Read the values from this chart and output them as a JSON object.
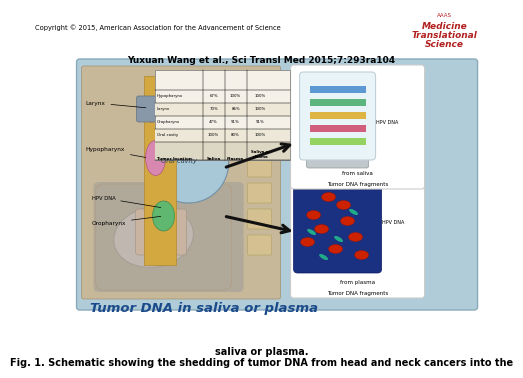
{
  "title_line1": "Fig. 1. Schematic showing the shedding of tumor DNA from head and neck cancers into the",
  "title_line2": "saliva or plasma.",
  "citation": "Yuxuan Wang et al., Sci Transl Med 2015;7:293ra104",
  "copyright": "Copyright © 2015, American Association for the Advancement of Science",
  "journal_line1": "Science",
  "journal_line2": "Translational",
  "journal_line3": "Medicine",
  "journal_line4": "AAAS",
  "bg_color": "#ffffff",
  "main_bg": "#b8d4e0",
  "title_fontsize": 7.0,
  "citation_fontsize": 6.5,
  "copyright_fontsize": 4.8,
  "journal_color": "#b22020",
  "main_label": "Tumor DNA in saliva or plasma",
  "table_headers": [
    "Tumor location",
    "Saliva",
    "Plasma",
    "Saliva or\nplasma"
  ],
  "table_rows": [
    [
      "Oral cavity",
      "100%",
      "80%",
      "100%"
    ],
    [
      "Oropharynx",
      "47%",
      "91%",
      "91%"
    ],
    [
      "Larynx",
      "70%",
      "86%",
      "100%"
    ],
    [
      "Hypopharynx",
      "67%",
      "100%",
      "100%"
    ]
  ]
}
